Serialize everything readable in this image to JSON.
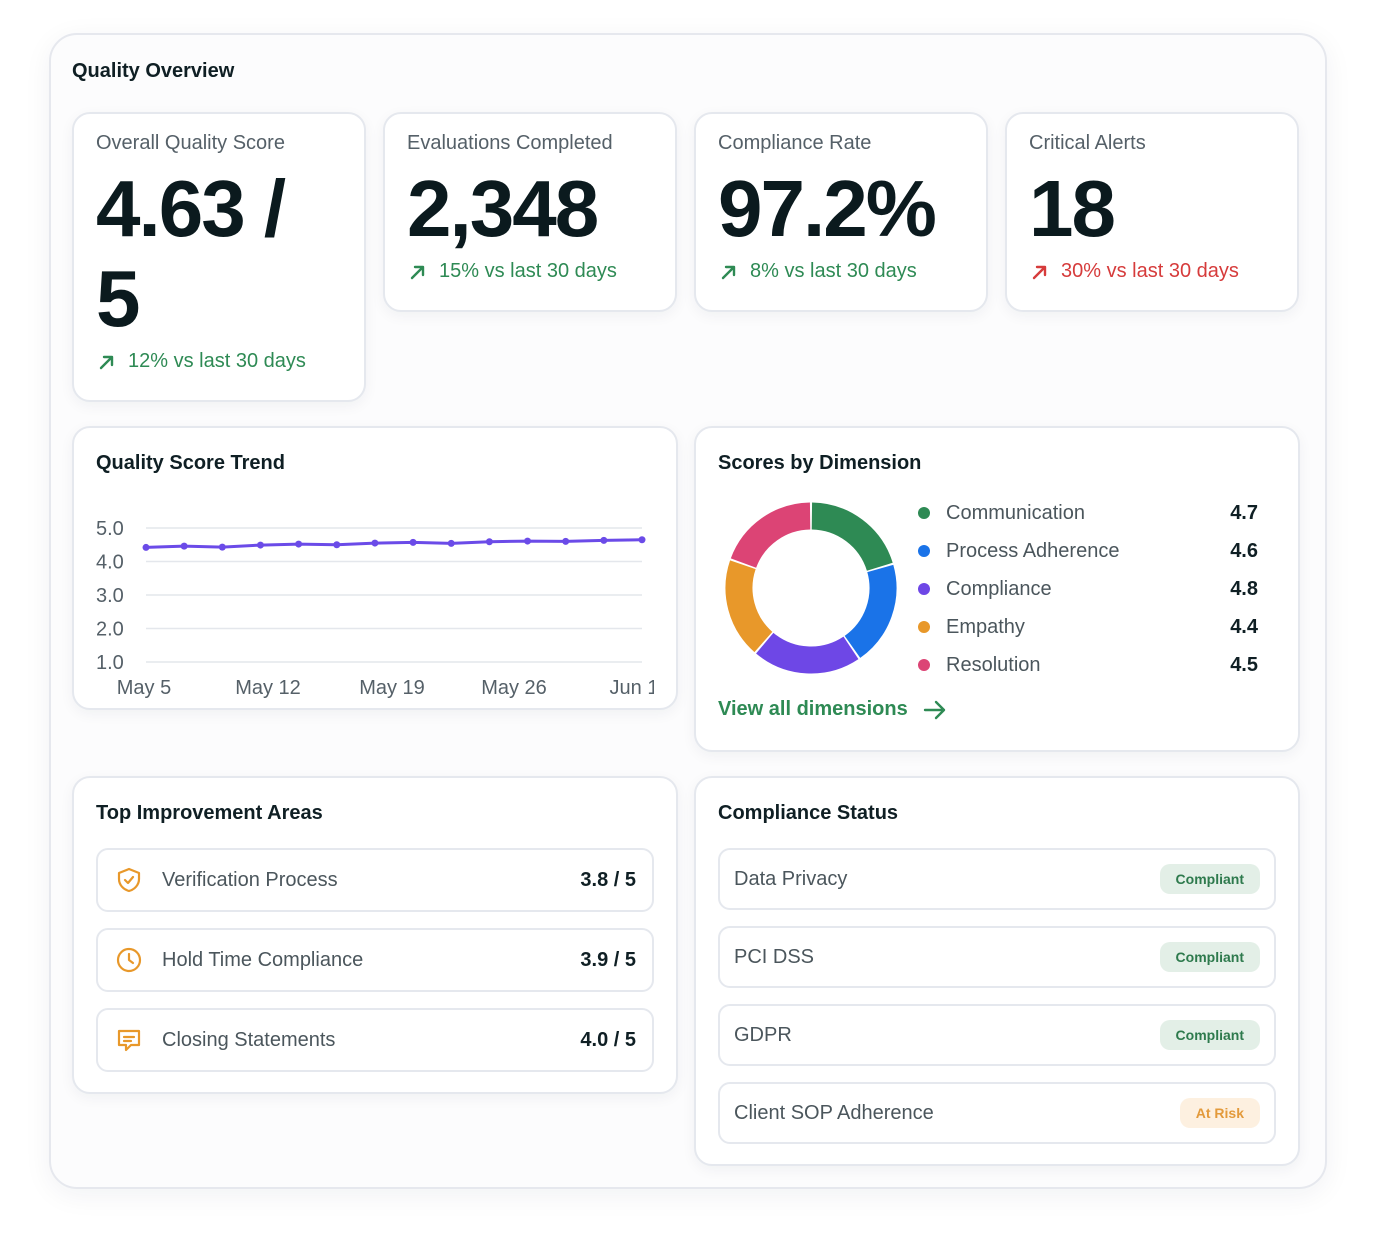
{
  "overview": {
    "title": "Quality Overview"
  },
  "kpis": [
    {
      "label": "Overall Quality Score",
      "value_line1": "4.63 /",
      "value_line2": "5",
      "trend": "12% vs last 30 days",
      "trend_direction": "up",
      "trend_color": "#2e8a54"
    },
    {
      "label": "Evaluations Completed",
      "value": "2,348",
      "trend": "15% vs last 30 days",
      "trend_direction": "up",
      "trend_color": "#2e8a54"
    },
    {
      "label": "Compliance Rate",
      "value": "97.2%",
      "trend": "8% vs last 30 days",
      "trend_direction": "up",
      "trend_color": "#2e8a54"
    },
    {
      "label": "Critical Alerts",
      "value": "18",
      "trend": "30% vs last 30 days",
      "trend_direction": "up",
      "trend_color": "#d63b3b"
    }
  ],
  "trend": {
    "title": "Quality Score Trend",
    "chart_data": {
      "type": "line",
      "ylim": [
        1.0,
        5.0
      ],
      "yticks": [
        "5.0",
        "4.0",
        "3.0",
        "2.0",
        "1.0"
      ],
      "xticks": [
        "May 5",
        "May 12",
        "May 19",
        "May 26",
        "Jun 1"
      ],
      "series": [
        {
          "color": "#6b4be8",
          "values": [
            4.42,
            4.46,
            4.43,
            4.49,
            4.52,
            4.5,
            4.55,
            4.57,
            4.54,
            4.59,
            4.61,
            4.6,
            4.63,
            4.65
          ]
        }
      ]
    }
  },
  "dimensions": {
    "title": "Scores by Dimension",
    "items": [
      {
        "label": "Communication",
        "value": "4.7",
        "color": "#2e8a54"
      },
      {
        "label": "Process Adherence",
        "value": "4.6",
        "color": "#1a73e8"
      },
      {
        "label": "Compliance",
        "value": "4.8",
        "color": "#6e47e6"
      },
      {
        "label": "Empathy",
        "value": "4.4",
        "color": "#e8982a"
      },
      {
        "label": "Resolution",
        "value": "4.5",
        "color": "#dc4475"
      }
    ],
    "link": "View all dimensions"
  },
  "improvement": {
    "title": "Top Improvement Areas",
    "items": [
      {
        "label": "Verification Process",
        "score": "3.8 / 5",
        "icon": "shield-check-icon"
      },
      {
        "label": "Hold Time Compliance",
        "score": "3.9 / 5",
        "icon": "clock-icon"
      },
      {
        "label": "Closing Statements",
        "score": "4.0 / 5",
        "icon": "message-icon"
      }
    ],
    "icon_color": "#e8982a"
  },
  "compliance": {
    "title": "Compliance Status",
    "items": [
      {
        "label": "Data Privacy",
        "status": "Compliant",
        "kind": "ok"
      },
      {
        "label": "PCI DSS",
        "status": "Compliant",
        "kind": "ok"
      },
      {
        "label": "GDPR",
        "status": "Compliant",
        "kind": "ok"
      },
      {
        "label": "Client SOP Adherence",
        "status": "At Risk",
        "kind": "risk"
      }
    ]
  }
}
